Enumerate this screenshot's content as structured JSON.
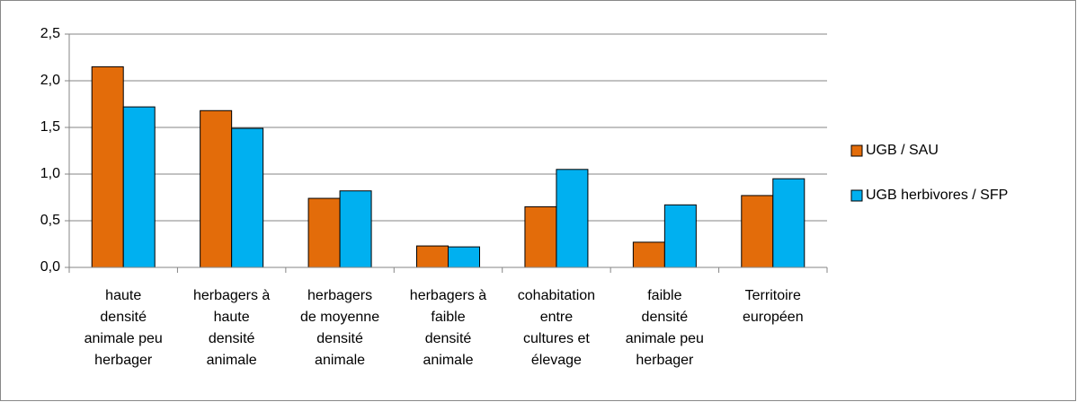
{
  "chart_data": {
    "type": "bar",
    "categories": [
      "haute\ndensité\nanimale peu\nherbager",
      "herbagers à\nhaute\ndensité\nanimale",
      "herbagers\nde moyenne\ndensité\nanimale",
      "herbagers à\nfaible\ndensité\nanimale",
      "cohabitation\nentre\ncultures et\nélevage",
      "faible\ndensité\nanimale peu\nherbager",
      "Territoire\neuropéen"
    ],
    "series": [
      {
        "name": "UGB / SAU",
        "color": "#e36c0a",
        "values": [
          2.15,
          1.68,
          0.74,
          0.23,
          0.65,
          0.27,
          0.77
        ]
      },
      {
        "name": "UGB herbivores / SFP",
        "color": "#00b0f0",
        "values": [
          1.72,
          1.49,
          0.82,
          0.22,
          1.05,
          0.67,
          0.95
        ]
      }
    ],
    "ylim": [
      0,
      2.5
    ],
    "yticks": [
      {
        "value": 0,
        "label": "0,0"
      },
      {
        "value": 0.5,
        "label": "0,5"
      },
      {
        "value": 1,
        "label": "1,0"
      },
      {
        "value": 1.5,
        "label": "1,5"
      },
      {
        "value": 2,
        "label": "2,0"
      },
      {
        "value": 2.5,
        "label": "2,5"
      }
    ],
    "grid": true,
    "legend": "right"
  }
}
